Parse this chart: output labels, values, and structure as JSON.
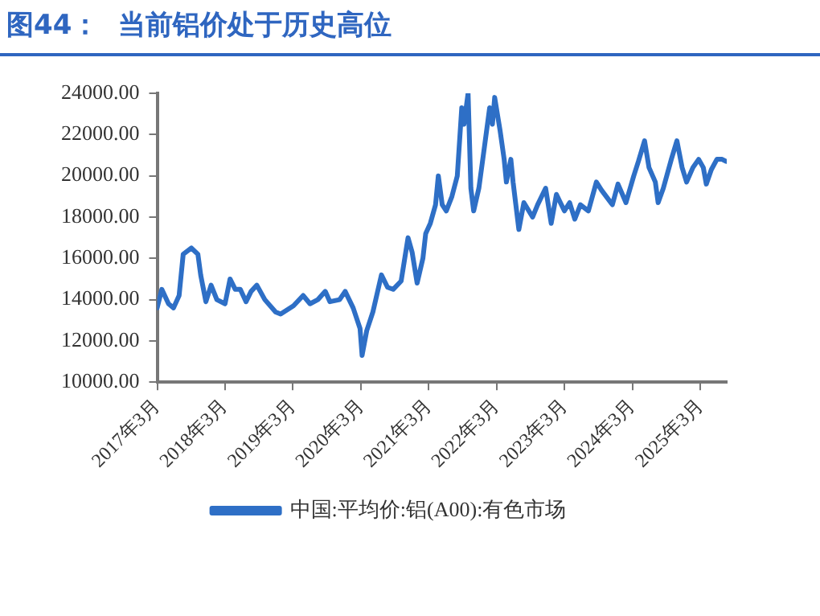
{
  "chart_data": {
    "type": "line",
    "title": "图44：  当前铝价处于历史高位",
    "legend": "bottom",
    "grid": false,
    "marker": "none",
    "line_style": "solid",
    "xlim": [
      "2017-03-01",
      "2025-07-20"
    ],
    "xticks": [
      {
        "value": "2017-03",
        "label": "2017年3月"
      },
      {
        "value": "2018-03",
        "label": "2018年3月"
      },
      {
        "value": "2019-03",
        "label": "2019年3月"
      },
      {
        "value": "2020-03",
        "label": "2020年3月"
      },
      {
        "value": "2021-03",
        "label": "2021年3月"
      },
      {
        "value": "2022-03",
        "label": "2022年3月"
      },
      {
        "value": "2023-03",
        "label": "2023年3月"
      },
      {
        "value": "2024-03",
        "label": "2024年3月"
      },
      {
        "value": "2025-03",
        "label": "2025年3月"
      }
    ],
    "ylim": [
      10000,
      24000
    ],
    "yticks": [
      {
        "value": 10000,
        "label": "10000.00"
      },
      {
        "value": 12000,
        "label": "12000.00"
      },
      {
        "value": 14000,
        "label": "14000.00"
      },
      {
        "value": 16000,
        "label": "16000.00"
      },
      {
        "value": 18000,
        "label": "18000.00"
      },
      {
        "value": 20000,
        "label": "20000.00"
      },
      {
        "value": 22000,
        "label": "22000.00"
      },
      {
        "value": 24000,
        "label": "24000.00"
      }
    ],
    "series": [
      {
        "name": "中国:平均价:铝(A00):有色市场",
        "color": "#2e6fc6",
        "x": [
          "2017-03-01",
          "2017-03-26",
          "2017-05-01",
          "2017-05-28",
          "2017-06-27",
          "2017-07-19",
          "2017-09-01",
          "2017-10-06",
          "2017-10-21",
          "2017-11-18",
          "2017-12-16",
          "2018-01-16",
          "2018-03-01",
          "2018-03-28",
          "2018-04-25",
          "2018-05-22",
          "2018-06-22",
          "2018-07-19",
          "2018-08-19",
          "2018-10-01",
          "2018-11-28",
          "2018-12-25",
          "2019-03-04",
          "2019-04-25",
          "2019-06-01",
          "2019-07-13",
          "2019-08-22",
          "2019-09-16",
          "2019-11-07",
          "2019-12-07",
          "2020-01-19",
          "2020-02-25",
          "2020-03-07",
          "2020-04-01",
          "2020-05-04",
          "2020-06-19",
          "2020-07-22",
          "2020-08-21",
          "2020-10-03",
          "2020-11-09",
          "2020-12-01",
          "2020-12-28",
          "2021-01-28",
          "2021-02-12",
          "2021-03-09",
          "2021-04-06",
          "2021-04-21",
          "2021-05-12",
          "2021-06-03",
          "2021-07-03",
          "2021-08-01",
          "2021-08-25",
          "2021-09-06",
          "2021-09-28",
          "2021-10-13",
          "2021-10-28",
          "2021-11-25",
          "2021-12-25",
          "2022-01-22",
          "2022-02-06",
          "2022-02-18",
          "2022-03-19",
          "2022-04-10",
          "2022-04-22",
          "2022-05-16",
          "2022-05-28",
          "2022-06-28",
          "2022-07-25",
          "2022-09-10",
          "2022-10-07",
          "2022-11-19",
          "2022-12-19",
          "2023-01-16",
          "2023-02-28",
          "2023-03-28",
          "2023-04-25",
          "2023-05-25",
          "2023-07-07",
          "2023-08-19",
          "2023-09-16",
          "2023-11-13",
          "2023-12-13",
          "2024-01-25",
          "2024-03-07",
          "2024-04-01",
          "2024-05-04",
          "2024-05-28",
          "2024-07-01",
          "2024-07-16",
          "2024-08-13",
          "2024-09-25",
          "2024-10-25",
          "2024-11-22",
          "2024-12-16",
          "2025-01-19",
          "2025-02-19",
          "2025-03-16",
          "2025-04-01",
          "2025-04-28",
          "2025-05-28",
          "2025-06-25",
          "2025-07-16"
        ],
        "values": [
          13600,
          14500,
          13800,
          13600,
          14200,
          16200,
          16500,
          16200,
          15200,
          13900,
          14700,
          14000,
          13800,
          15000,
          14500,
          14500,
          13900,
          14400,
          14700,
          14000,
          13400,
          13300,
          13700,
          14200,
          13800,
          14000,
          14400,
          13900,
          14000,
          14400,
          13600,
          12600,
          11300,
          12500,
          13400,
          15200,
          14600,
          14500,
          14900,
          17000,
          16300,
          14800,
          16000,
          17200,
          17700,
          18600,
          20000,
          18600,
          18300,
          19000,
          20000,
          23300,
          22500,
          24000,
          19400,
          18300,
          19400,
          21400,
          23300,
          22500,
          23800,
          22200,
          20800,
          19700,
          20800,
          19700,
          17400,
          18700,
          18000,
          18600,
          19400,
          17700,
          19100,
          18300,
          18700,
          17900,
          18600,
          18300,
          19700,
          19300,
          18600,
          19600,
          18700,
          20000,
          20700,
          21700,
          20400,
          19700,
          18700,
          19400,
          20800,
          21700,
          20400,
          19700,
          20400,
          20800,
          20400,
          19600,
          20300,
          20800,
          20800,
          20700
        ]
      }
    ]
  }
}
